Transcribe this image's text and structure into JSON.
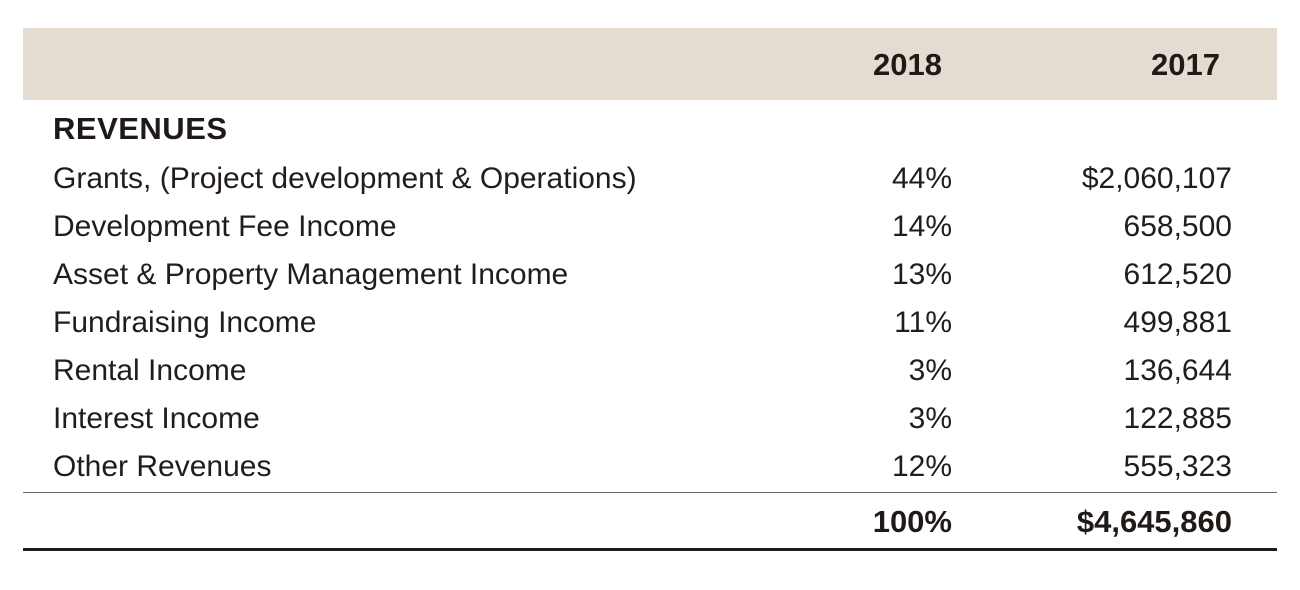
{
  "table": {
    "columns": [
      "2018",
      "2017"
    ],
    "section_title": "REVENUES",
    "rows": [
      {
        "label": "Grants, (Project development & Operations)",
        "pct": "44%",
        "amount": "$2,060,107"
      },
      {
        "label": "Development Fee Income",
        "pct": "14%",
        "amount": "658,500"
      },
      {
        "label": "Asset & Property Management Income",
        "pct": "13%",
        "amount": "612,520"
      },
      {
        "label": "Fundraising Income",
        "pct": "11%",
        "amount": "499,881"
      },
      {
        "label": "Rental Income",
        "pct": "3%",
        "amount": "136,644"
      },
      {
        "label": "Interest Income",
        "pct": "3%",
        "amount": "122,885"
      },
      {
        "label": "Other Revenues",
        "pct": "12%",
        "amount": "555,323"
      }
    ],
    "total": {
      "pct": "100%",
      "amount": "$4,645,860"
    }
  },
  "colors": {
    "header_band": "#e4dcd1",
    "text": "#1f1a17"
  }
}
